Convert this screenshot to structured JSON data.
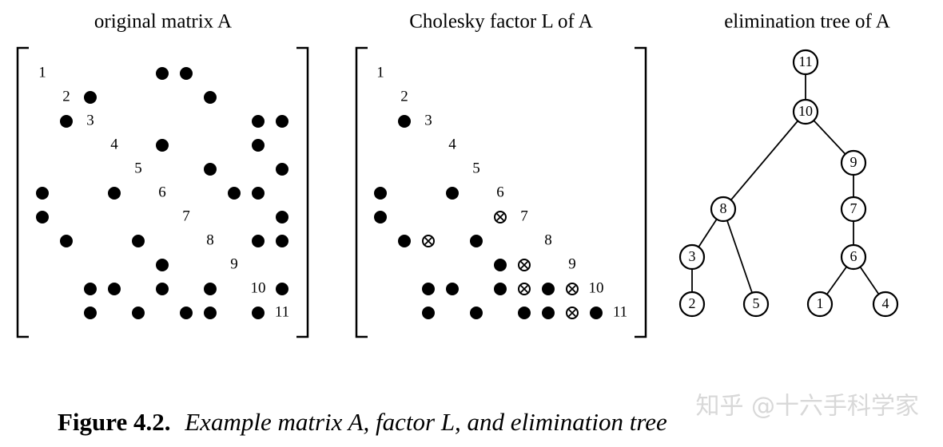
{
  "titles": [
    "original matrix A",
    "Cholesky factor L of A",
    "elimination tree of A"
  ],
  "matrix_a": {
    "diagonal": [
      "1",
      "2",
      "3",
      "4",
      "5",
      "6",
      "7",
      "8",
      "9",
      "10",
      "11"
    ],
    "nonzeros": [
      [
        1,
        6
      ],
      [
        1,
        7
      ],
      [
        2,
        3
      ],
      [
        2,
        8
      ],
      [
        3,
        2
      ],
      [
        3,
        10
      ],
      [
        3,
        11
      ],
      [
        4,
        6
      ],
      [
        4,
        10
      ],
      [
        5,
        8
      ],
      [
        5,
        11
      ],
      [
        6,
        1
      ],
      [
        6,
        4
      ],
      [
        6,
        9
      ],
      [
        6,
        10
      ],
      [
        7,
        1
      ],
      [
        7,
        11
      ],
      [
        8,
        2
      ],
      [
        8,
        5
      ],
      [
        8,
        10
      ],
      [
        8,
        11
      ],
      [
        9,
        6
      ],
      [
        10,
        3
      ],
      [
        10,
        4
      ],
      [
        10,
        6
      ],
      [
        10,
        8
      ],
      [
        10,
        11
      ],
      [
        11,
        3
      ],
      [
        11,
        5
      ],
      [
        11,
        7
      ],
      [
        11,
        8
      ],
      [
        11,
        10
      ]
    ]
  },
  "factor_l": {
    "diagonal": [
      "1",
      "2",
      "3",
      "4",
      "5",
      "6",
      "7",
      "8",
      "9",
      "10",
      "11"
    ],
    "nonzeros": [
      [
        3,
        2
      ],
      [
        6,
        1
      ],
      [
        6,
        4
      ],
      [
        7,
        1
      ],
      [
        8,
        2
      ],
      [
        8,
        5
      ],
      [
        9,
        6
      ],
      [
        10,
        3
      ],
      [
        10,
        4
      ],
      [
        10,
        6
      ],
      [
        10,
        8
      ],
      [
        11,
        3
      ],
      [
        11,
        5
      ],
      [
        11,
        7
      ],
      [
        11,
        8
      ],
      [
        11,
        10
      ]
    ],
    "fill_in": [
      [
        7,
        6
      ],
      [
        8,
        3
      ],
      [
        9,
        7
      ],
      [
        10,
        7
      ],
      [
        10,
        9
      ],
      [
        11,
        9
      ]
    ]
  },
  "tree": {
    "nodes": [
      "11",
      "10",
      "9",
      "8",
      "7",
      "3",
      "6",
      "2",
      "5",
      "1",
      "4"
    ],
    "edges": [
      [
        "11",
        "10"
      ],
      [
        "10",
        "8"
      ],
      [
        "10",
        "9"
      ],
      [
        "9",
        "7"
      ],
      [
        "7",
        "6"
      ],
      [
        "8",
        "3"
      ],
      [
        "8",
        "5"
      ],
      [
        "3",
        "2"
      ],
      [
        "6",
        "1"
      ],
      [
        "6",
        "4"
      ]
    ]
  },
  "caption": {
    "label": "Figure 4.2.",
    "text": "Example matrix A, factor L, and elimination tree"
  },
  "watermark": "知乎 @十六手科学家"
}
